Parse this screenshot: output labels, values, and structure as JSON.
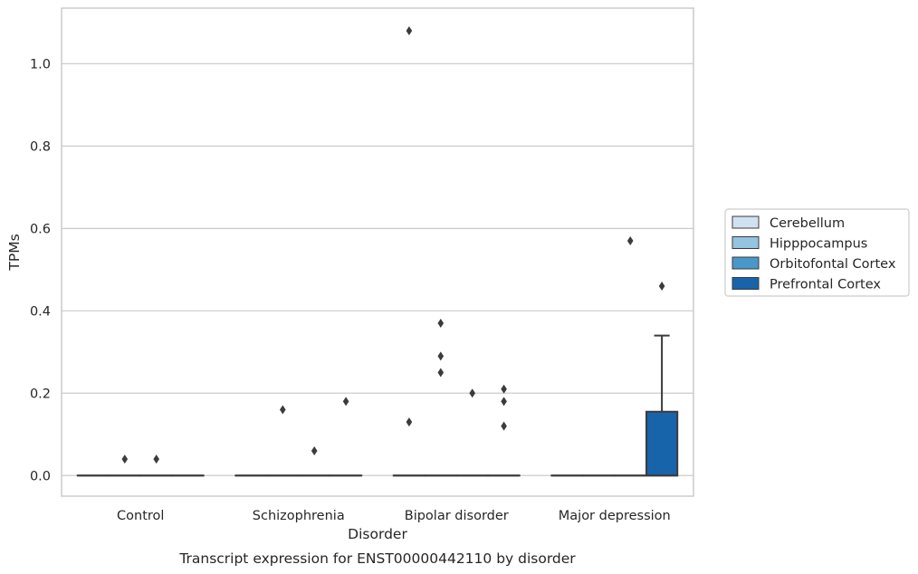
{
  "chart_data": {
    "type": "box",
    "caption": "Transcript expression for ENST00000442110 by disorder",
    "xlabel": "Disorder",
    "ylabel": "TPMs",
    "ylim": [
      -0.05,
      1.135
    ],
    "yticks": [
      0.0,
      0.2,
      0.4,
      0.6,
      0.8,
      1.0
    ],
    "ytick_labels": [
      "0.0",
      "0.2",
      "0.4",
      "0.6",
      "0.8",
      "1.0"
    ],
    "grid": "horizontal",
    "legend_position": "right",
    "categories": [
      "Control",
      "Schizophrenia",
      "Bipolar disorder",
      "Major depression"
    ],
    "series": [
      {
        "name": "Cerebellum",
        "color": "#d0e1f2",
        "boxes": [
          {
            "q1": 0,
            "median": 0,
            "q3": 0,
            "whislo": 0,
            "whishi": 0,
            "fliers": []
          },
          {
            "q1": 0,
            "median": 0,
            "q3": 0,
            "whislo": 0,
            "whishi": 0,
            "fliers": []
          },
          {
            "q1": 0,
            "median": 0,
            "q3": 0,
            "whislo": 0,
            "whishi": 0,
            "fliers": [
              1.08,
              0.13
            ]
          },
          {
            "q1": 0,
            "median": 0,
            "q3": 0,
            "whislo": 0,
            "whishi": 0,
            "fliers": []
          }
        ]
      },
      {
        "name": "Hipppocampus",
        "color": "#94c4df",
        "boxes": [
          {
            "q1": 0,
            "median": 0,
            "q3": 0,
            "whislo": 0,
            "whishi": 0,
            "fliers": [
              0.04
            ]
          },
          {
            "q1": 0,
            "median": 0,
            "q3": 0,
            "whislo": 0,
            "whishi": 0,
            "fliers": [
              0.16
            ]
          },
          {
            "q1": 0,
            "median": 0,
            "q3": 0,
            "whislo": 0,
            "whishi": 0,
            "fliers": [
              0.37,
              0.29,
              0.25
            ]
          },
          {
            "q1": 0,
            "median": 0,
            "q3": 0,
            "whislo": 0,
            "whishi": 0,
            "fliers": []
          }
        ]
      },
      {
        "name": "Orbitofontal Cortex",
        "color": "#4a98c9",
        "boxes": [
          {
            "q1": 0,
            "median": 0,
            "q3": 0,
            "whislo": 0,
            "whishi": 0,
            "fliers": [
              0.04
            ]
          },
          {
            "q1": 0,
            "median": 0,
            "q3": 0,
            "whislo": 0,
            "whishi": 0,
            "fliers": [
              0.06
            ]
          },
          {
            "q1": 0,
            "median": 0,
            "q3": 0,
            "whislo": 0,
            "whishi": 0,
            "fliers": [
              0.2
            ]
          },
          {
            "q1": 0,
            "median": 0,
            "q3": 0,
            "whislo": 0,
            "whishi": 0,
            "fliers": [
              0.57
            ]
          }
        ]
      },
      {
        "name": "Prefrontal Cortex",
        "color": "#1764ab",
        "boxes": [
          {
            "q1": 0,
            "median": 0,
            "q3": 0,
            "whislo": 0,
            "whishi": 0,
            "fliers": []
          },
          {
            "q1": 0,
            "median": 0,
            "q3": 0,
            "whislo": 0,
            "whishi": 0,
            "fliers": [
              0.18
            ]
          },
          {
            "q1": 0,
            "median": 0,
            "q3": 0,
            "whislo": 0,
            "whishi": 0,
            "fliers": [
              0.21,
              0.18,
              0.12
            ]
          },
          {
            "q1": 0,
            "median": 0,
            "q3": 0.155,
            "whislo": 0,
            "whishi": 0.34,
            "fliers": [
              0.46
            ]
          }
        ]
      }
    ]
  }
}
